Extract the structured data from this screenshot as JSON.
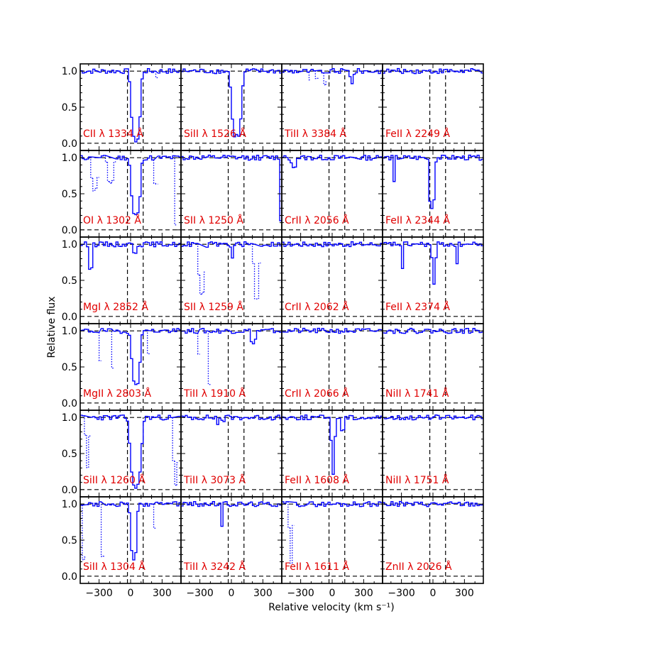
{
  "chart_data": {
    "type": "line",
    "xlabel": "Relative velocity (km s⁻¹)",
    "ylabel": "Relative flux",
    "xlim": [
      -480,
      480
    ],
    "ylim": [
      -0.1,
      1.1
    ],
    "xticks": [
      -300,
      0,
      300
    ],
    "yticks": [
      0.0,
      0.5,
      1.0
    ],
    "xtick_labels": [
      "−300",
      "0",
      "300"
    ],
    "ytick_labels": [
      "0.0",
      "0.5",
      "1.0"
    ],
    "velocity_markers": [
      -30,
      120
    ],
    "colors": {
      "spectrum": "#0000ff",
      "label": "#e00000",
      "reference": "#000000"
    },
    "panels": [
      {
        "label": "CII λ 1334 Å",
        "ion": "CII",
        "wavelength": 1334,
        "features": [
          {
            "center": 40,
            "width": 100,
            "depth": 0.96,
            "style": "solid"
          }
        ],
        "blends": [
          {
            "center": 240,
            "width": 30,
            "depth": 0.08
          }
        ]
      },
      {
        "label": "SiII λ 1526 Å",
        "ion": "SiII",
        "wavelength": 1526,
        "features": [
          {
            "center": 40,
            "width": 110,
            "depth": 0.9,
            "style": "solid"
          }
        ],
        "blends": []
      },
      {
        "label": "TiII λ 3384 Å",
        "ion": "TiII",
        "wavelength": 3384,
        "features": [
          {
            "center": 180,
            "width": 40,
            "depth": 0.15,
            "style": "solid"
          }
        ],
        "blends": [
          {
            "center": -220,
            "width": 25,
            "depth": 0.15
          },
          {
            "center": -150,
            "width": 20,
            "depth": 0.35
          },
          {
            "center": -70,
            "width": 20,
            "depth": 0.5
          }
        ]
      },
      {
        "label": "FeII λ 2249 Å",
        "ion": "FeII",
        "wavelength": 2249,
        "features": [],
        "blends": []
      },
      {
        "label": "OI λ 1302 Å",
        "ion": "OI",
        "wavelength": 1302,
        "features": [
          {
            "center": 40,
            "width": 100,
            "depth": 0.8,
            "style": "solid"
          }
        ],
        "blends": [
          {
            "center": -350,
            "width": 70,
            "depth": 0.45
          },
          {
            "center": -200,
            "width": 70,
            "depth": 0.35
          },
          {
            "center": 230,
            "width": 40,
            "depth": 0.4
          },
          {
            "center": 420,
            "width": 20,
            "depth": 0.95
          }
        ]
      },
      {
        "label": "SII λ 1250 Å",
        "ion": "SII",
        "wavelength": 1250,
        "features": [
          {
            "center": 460,
            "width": 25,
            "depth": 0.85,
            "style": "solid"
          }
        ],
        "blends": []
      },
      {
        "label": "CrII λ 2056 Å",
        "ion": "CrII",
        "wavelength": 2056,
        "features": [
          {
            "center": -380,
            "width": 60,
            "depth": 0.12,
            "style": "solid"
          }
        ],
        "blends": []
      },
      {
        "label": "FeII λ 2344 Å",
        "ion": "FeII",
        "wavelength": 2344,
        "features": [
          {
            "center": -20,
            "width": 60,
            "depth": 0.7,
            "style": "solid"
          },
          {
            "center": -380,
            "width": 20,
            "depth": 0.35,
            "style": "solid"
          }
        ],
        "blends": []
      },
      {
        "label": "MgI λ 2852 Å",
        "ion": "MgI",
        "wavelength": 2852,
        "features": [
          {
            "center": -390,
            "width": 20,
            "depth": 0.85,
            "style": "solid"
          },
          {
            "center": 30,
            "width": 30,
            "depth": 0.12,
            "style": "solid"
          }
        ],
        "blends": []
      },
      {
        "label": "SII λ 1259 Å",
        "ion": "SII",
        "wavelength": 1259,
        "features": [
          {
            "center": 0,
            "width": 30,
            "depth": 0.22,
            "style": "solid"
          }
        ],
        "blends": [
          {
            "center": -290,
            "width": 70,
            "depth": 0.7
          },
          {
            "center": 230,
            "width": 60,
            "depth": 0.75
          }
        ]
      },
      {
        "label": "CrII λ 2062 Å",
        "ion": "CrII",
        "wavelength": 2062,
        "features": [],
        "blends": []
      },
      {
        "label": "FeII λ 2374 Å",
        "ion": "FeII",
        "wavelength": 2374,
        "features": [
          {
            "center": 0,
            "width": 40,
            "depth": 0.55,
            "style": "solid"
          },
          {
            "center": -300,
            "width": 25,
            "depth": 0.35,
            "style": "solid"
          },
          {
            "center": 220,
            "width": 20,
            "depth": 0.3,
            "style": "solid"
          }
        ],
        "blends": []
      },
      {
        "label": "MgII λ 2803 Å",
        "ion": "MgII",
        "wavelength": 2803,
        "features": [
          {
            "center": 40,
            "width": 90,
            "depth": 0.75,
            "style": "solid"
          }
        ],
        "blends": [
          {
            "center": -300,
            "width": 25,
            "depth": 0.4
          },
          {
            "center": -180,
            "width": 25,
            "depth": 0.55
          },
          {
            "center": 160,
            "width": 30,
            "depth": 0.3
          }
        ]
      },
      {
        "label": "TiII λ 1910 Å",
        "ion": "TiII",
        "wavelength": 1910,
        "features": [
          {
            "center": 200,
            "width": 50,
            "depth": 0.18,
            "style": "solid"
          }
        ],
        "blends": [
          {
            "center": -220,
            "width": 25,
            "depth": 0.75
          },
          {
            "center": -320,
            "width": 20,
            "depth": 0.3
          }
        ]
      },
      {
        "label": "CrII λ 2066 Å",
        "ion": "CrII",
        "wavelength": 2066,
        "features": [],
        "blends": []
      },
      {
        "label": "NiII λ 1741 Å",
        "ion": "NiII",
        "wavelength": 1741,
        "features": [],
        "blends": []
      },
      {
        "label": "SiII λ 1260 Å",
        "ion": "SiII",
        "wavelength": 1260,
        "features": [
          {
            "center": 40,
            "width": 120,
            "depth": 0.95,
            "style": "solid"
          }
        ],
        "blends": [
          {
            "center": -420,
            "width": 40,
            "depth": 0.7
          },
          {
            "center": 420,
            "width": 50,
            "depth": 0.95
          }
        ]
      },
      {
        "label": "TiII λ 3073 Å",
        "ion": "TiII",
        "wavelength": 3073,
        "features": [
          {
            "center": -90,
            "width": 15,
            "depth": 0.8,
            "style": "solid"
          },
          {
            "center": -140,
            "width": 15,
            "depth": 0.1,
            "style": "solid"
          }
        ],
        "blends": []
      },
      {
        "label": "FeII λ 1608 Å",
        "ion": "FeII",
        "wavelength": 1608,
        "features": [
          {
            "center": 0,
            "width": 40,
            "depth": 0.78,
            "style": "solid"
          },
          {
            "center": 90,
            "width": 20,
            "depth": 0.45,
            "style": "solid"
          }
        ],
        "blends": []
      },
      {
        "label": "NiII λ 1751 Å",
        "ion": "NiII",
        "wavelength": 1751,
        "features": [],
        "blends": []
      },
      {
        "label": "SiII λ 1304 Å",
        "ion": "SiII",
        "wavelength": 1304,
        "features": [
          {
            "center": 20,
            "width": 70,
            "depth": 0.75,
            "style": "solid"
          }
        ],
        "blends": [
          {
            "center": -450,
            "width": 30,
            "depth": 0.9
          },
          {
            "center": -270,
            "width": 30,
            "depth": 0.85
          },
          {
            "center": 220,
            "width": 25,
            "depth": 0.35
          }
        ]
      },
      {
        "label": "TiII λ 3242 Å",
        "ion": "TiII",
        "wavelength": 3242,
        "features": [
          {
            "center": -100,
            "width": 15,
            "depth": 0.3,
            "style": "solid"
          }
        ],
        "blends": []
      },
      {
        "label": "FeII λ 1611 Å",
        "ion": "FeII",
        "wavelength": 1611,
        "features": [],
        "blends": [
          {
            "center": -400,
            "width": 40,
            "depth": 0.85
          }
        ]
      },
      {
        "label": "ZnII λ 2026 Å",
        "ion": "ZnII",
        "wavelength": 2026,
        "features": [],
        "blends": []
      }
    ]
  }
}
